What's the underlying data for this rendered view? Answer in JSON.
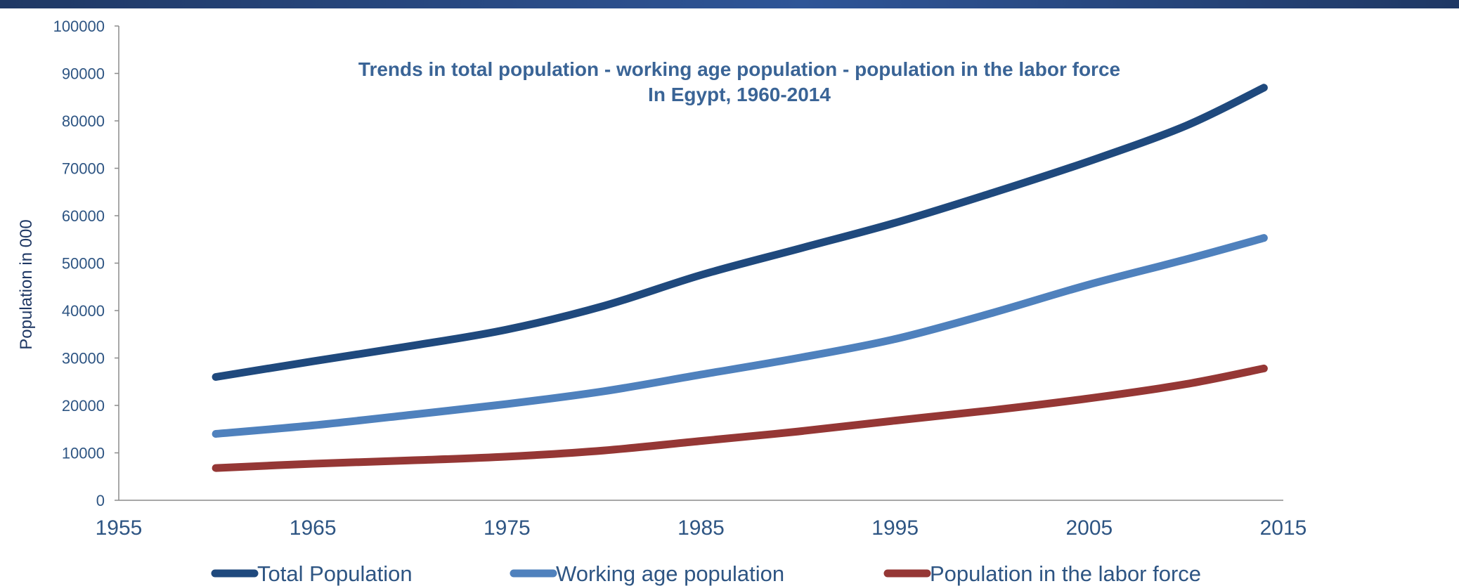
{
  "chart_data": {
    "type": "line",
    "title": "Trends in total population - working age population - population in the labor force",
    "subtitle": "In Egypt, 1960-2014",
    "xlabel": "",
    "ylabel": "Population in 000",
    "xlim": [
      1955,
      2015
    ],
    "ylim": [
      0,
      100000
    ],
    "x_ticks": [
      1955,
      1965,
      1975,
      1985,
      1995,
      2005,
      2015
    ],
    "y_ticks": [
      0,
      10000,
      20000,
      30000,
      40000,
      50000,
      60000,
      70000,
      80000,
      90000,
      100000
    ],
    "grid": false,
    "legend_position": "bottom",
    "x": [
      1960,
      1965,
      1970,
      1975,
      1980,
      1985,
      1990,
      1995,
      2000,
      2005,
      2010,
      2014
    ],
    "series": [
      {
        "name": "Total Population",
        "color": "#1f497d",
        "values": [
          26000,
          29300,
          32500,
          36000,
          41000,
          47500,
          53000,
          58500,
          64800,
          71500,
          79000,
          87000
        ]
      },
      {
        "name": "Working age population",
        "color": "#4f81bd",
        "values": [
          14000,
          15800,
          18000,
          20300,
          23000,
          26500,
          30000,
          34000,
          39500,
          45500,
          50800,
          55300
        ]
      },
      {
        "name": "Population in the labor force",
        "color": "#953735",
        "values": [
          6800,
          7700,
          8400,
          9200,
          10500,
          12500,
          14500,
          16800,
          19000,
          21500,
          24500,
          27800
        ]
      }
    ]
  }
}
